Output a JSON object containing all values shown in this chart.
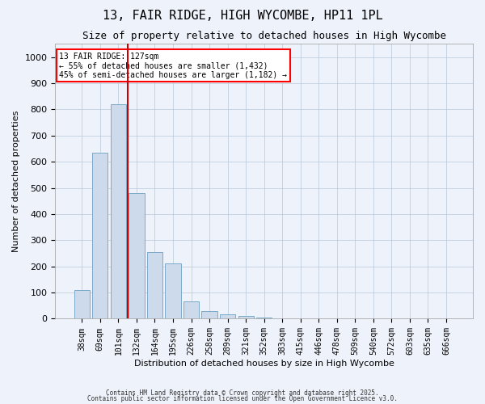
{
  "title1": "13, FAIR RIDGE, HIGH WYCOMBE, HP11 1PL",
  "title2": "Size of property relative to detached houses in High Wycombe",
  "xlabel": "Distribution of detached houses by size in High Wycombe",
  "ylabel": "Number of detached properties",
  "categories": [
    "38sqm",
    "69sqm",
    "101sqm",
    "132sqm",
    "164sqm",
    "195sqm",
    "226sqm",
    "258sqm",
    "289sqm",
    "321sqm",
    "352sqm",
    "383sqm",
    "415sqm",
    "446sqm",
    "478sqm",
    "509sqm",
    "540sqm",
    "572sqm",
    "603sqm",
    "635sqm",
    "666sqm"
  ],
  "values": [
    110,
    635,
    820,
    480,
    255,
    210,
    65,
    28,
    17,
    10,
    5,
    3,
    2,
    0,
    0,
    0,
    0,
    0,
    0,
    0,
    0
  ],
  "bar_color": "#ccdaeb",
  "bar_edge_color": "#7aaac8",
  "vline_color": "#cc0000",
  "ylim": [
    0,
    1050
  ],
  "yticks": [
    0,
    100,
    200,
    300,
    400,
    500,
    600,
    700,
    800,
    900,
    1000
  ],
  "annotation_text": "13 FAIR RIDGE: 127sqm\n← 55% of detached houses are smaller (1,432)\n45% of semi-detached houses are larger (1,182) →",
  "footer_line1": "Contains HM Land Registry data © Crown copyright and database right 2025.",
  "footer_line2": "Contains public sector information licensed under the Open Government Licence v3.0.",
  "bg_color": "#eef2fb",
  "grid_color": "#b8c8d8",
  "title_fontsize": 11,
  "subtitle_fontsize": 9,
  "tick_fontsize": 7,
  "ylabel_fontsize": 8,
  "xlabel_fontsize": 8
}
